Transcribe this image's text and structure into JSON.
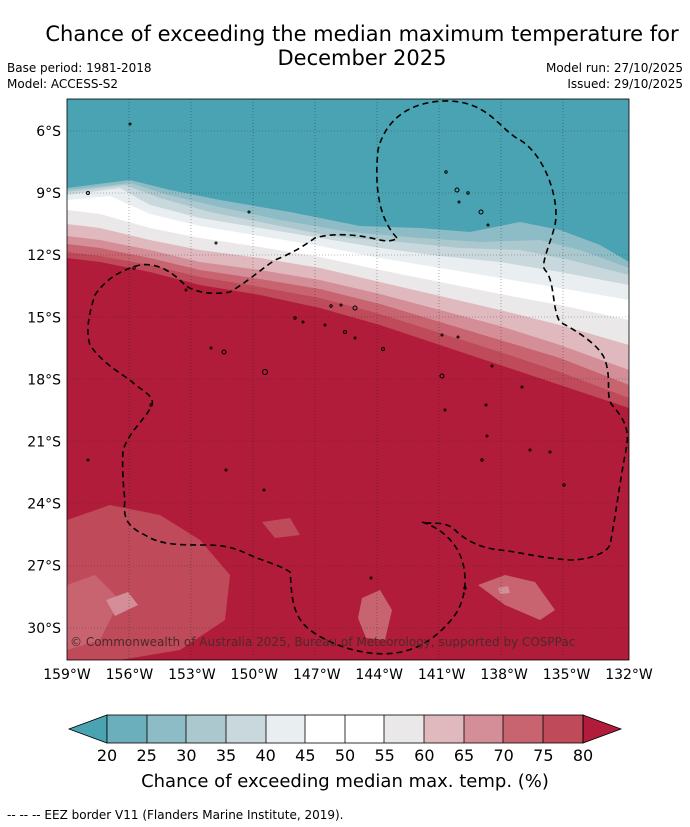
{
  "title": {
    "line1": "Chance of exceeding the median maximum temperature for",
    "line2": "December 2025"
  },
  "meta": {
    "base_period": "Base period: 1981-2018",
    "model": "Model: ACCESS-S2",
    "model_run": "Model run: 27/10/2025",
    "issued": "Issued: 29/10/2025"
  },
  "map": {
    "copyright": "© Commonwealth of Australia 2025, Bureau of Meteorology, supported by COSPPac",
    "lon_ticks": [
      "159°W",
      "156°W",
      "153°W",
      "150°W",
      "147°W",
      "144°W",
      "141°W",
      "138°W",
      "135°W",
      "132°W"
    ],
    "lat_ticks": [
      "6°S",
      "9°S",
      "12°S",
      "15°S",
      "18°S",
      "21°S",
      "24°S",
      "27°S",
      "30°S"
    ],
    "colors": {
      "below_20": "#4aa3b2",
      "c20_25": "#6cafbc",
      "c25_30": "#8dbcc6",
      "c30_35": "#abc8ce",
      "c35_40": "#c9d8dc",
      "c40_45": "#e9eff1",
      "c45_55": "#ffffff",
      "c55_60": "#ebe8e9",
      "c60_65": "#e0b9bf",
      "c65_70": "#d48e97",
      "c70_75": "#c76470",
      "c75_80": "#bf4a5a",
      "above_80": "#b11c3a"
    }
  },
  "colorbar": {
    "ticks": [
      "20",
      "25",
      "30",
      "35",
      "40",
      "45",
      "50",
      "55",
      "60",
      "65",
      "70",
      "75",
      "80"
    ],
    "label": "Chance of exceeding median max. temp. (%)"
  },
  "footnote": "--  --  -- EEZ border V11 (Flanders Marine Institute, 2019)."
}
